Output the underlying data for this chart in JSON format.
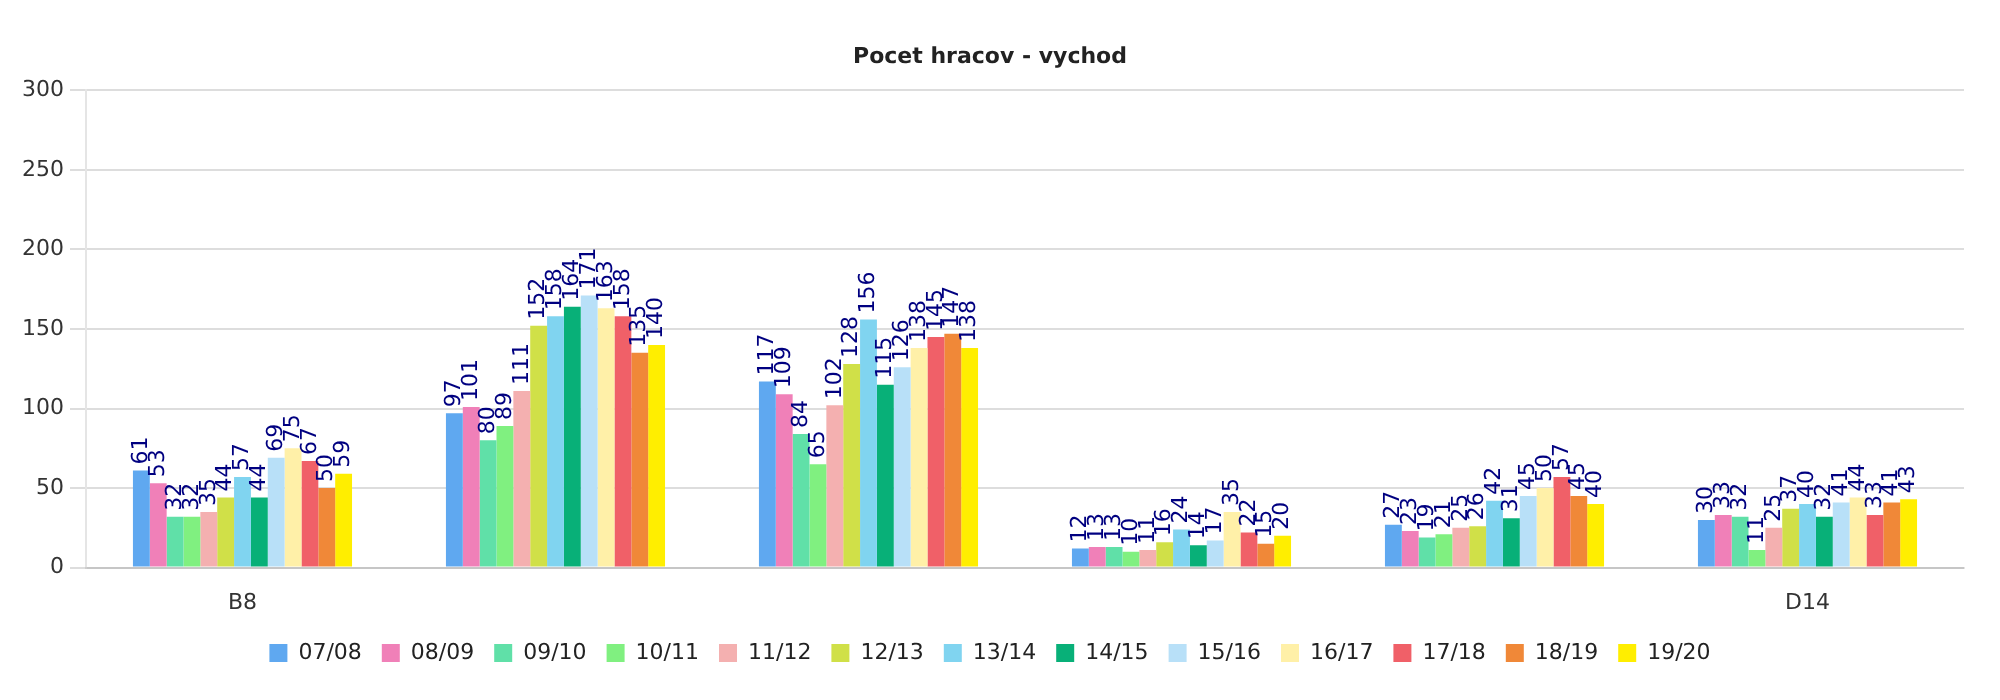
{
  "chart_data": {
    "type": "bar",
    "title": "Pocet hracov - vychod",
    "categories": [
      "B8",
      null,
      null,
      null,
      null,
      "D14"
    ],
    "series": [
      {
        "name": "07/08",
        "color": "#5fa8f0",
        "values": [
          61,
          97,
          117,
          12,
          27,
          30
        ]
      },
      {
        "name": "08/09",
        "color": "#f080b8",
        "values": [
          53,
          101,
          109,
          13,
          23,
          33
        ]
      },
      {
        "name": "09/10",
        "color": "#60e0a8",
        "values": [
          32,
          80,
          84,
          13,
          19,
          32
        ]
      },
      {
        "name": "10/11",
        "color": "#80f080",
        "values": [
          32,
          89,
          65,
          10,
          21,
          11
        ]
      },
      {
        "name": "11/12",
        "color": "#f4b0b0",
        "values": [
          35,
          111,
          102,
          11,
          25,
          25
        ]
      },
      {
        "name": "12/13",
        "color": "#d0e048",
        "values": [
          44,
          152,
          128,
          16,
          26,
          37
        ]
      },
      {
        "name": "13/14",
        "color": "#80d4f0",
        "values": [
          57,
          158,
          156,
          24,
          42,
          40
        ]
      },
      {
        "name": "14/15",
        "color": "#08b078",
        "values": [
          44,
          164,
          115,
          14,
          31,
          32
        ]
      },
      {
        "name": "15/16",
        "color": "#b8e0f8",
        "values": [
          69,
          171,
          126,
          17,
          45,
          41
        ]
      },
      {
        "name": "16/17",
        "color": "#fff0a8",
        "values": [
          75,
          163,
          138,
          35,
          50,
          44
        ]
      },
      {
        "name": "17/18",
        "color": "#f06068",
        "values": [
          67,
          158,
          145,
          22,
          57,
          33
        ]
      },
      {
        "name": "18/19",
        "color": "#f08838",
        "values": [
          50,
          135,
          147,
          15,
          45,
          41
        ]
      },
      {
        "name": "19/20",
        "color": "#ffee00",
        "values": [
          59,
          140,
          138,
          20,
          40,
          43
        ]
      }
    ],
    "ylim": [
      0,
      300
    ],
    "yticks": [
      0,
      50,
      100,
      150,
      200,
      250,
      300
    ],
    "grid": "y",
    "legend": "bottom",
    "data_labels": true
  }
}
